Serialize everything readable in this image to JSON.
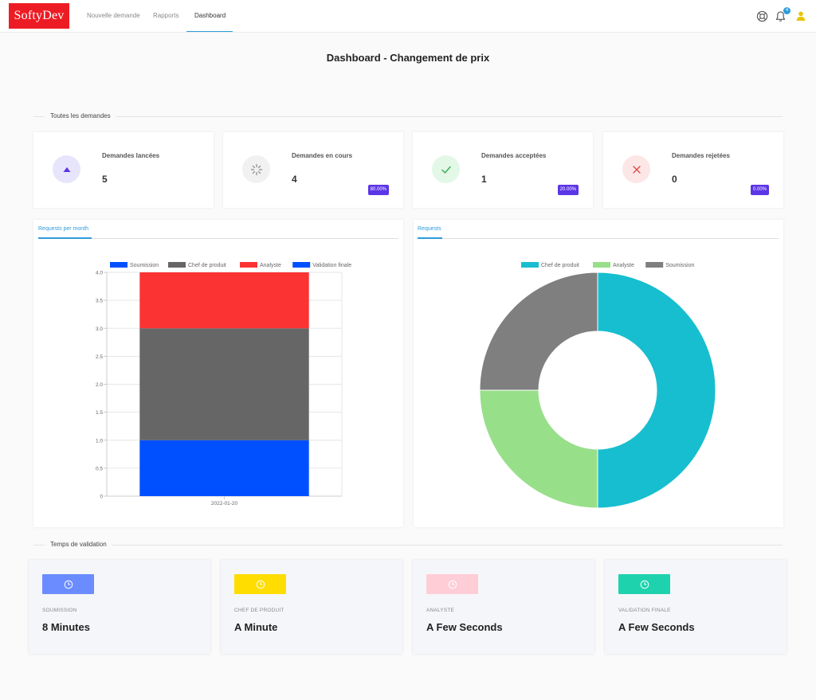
{
  "brand": {
    "logo": "SoftyDev",
    "color": "#ed1c24"
  },
  "nav": {
    "items": [
      {
        "label": "Nouvelle demande"
      },
      {
        "label": "Rapports"
      },
      {
        "label": "Dashboard",
        "active": true
      }
    ],
    "notification_count": "4",
    "icons": [
      "lifebuoy-icon",
      "bell-icon",
      "user-icon"
    ]
  },
  "page": {
    "title": "Dashboard - Changement de prix"
  },
  "sections": {
    "all_requests": "Toutes les demandes",
    "validation_time": "Temps de validation"
  },
  "stats": [
    {
      "title": "Demandes lancées",
      "value": "5",
      "percent": "",
      "icon": "triangle-up-icon",
      "icon_bg": "#e7e5fb",
      "icon_color": "#5b36e6"
    },
    {
      "title": "Demandes en cours",
      "value": "4",
      "percent": "80.00%",
      "icon": "spinner-icon",
      "icon_bg": "#f1f1f1",
      "icon_color": "#888888"
    },
    {
      "title": "Demandes acceptées",
      "value": "1",
      "percent": "20.00%",
      "icon": "check-icon",
      "icon_bg": "#e3f8e6",
      "icon_color": "#3caa50"
    },
    {
      "title": "Demandes rejetées",
      "value": "0",
      "percent": "0.00%",
      "icon": "close-icon",
      "icon_bg": "#fde6e6",
      "icon_color": "#e04545"
    }
  ],
  "charts": {
    "bar_tab": "Requests per month",
    "doughnut_tab": "Requests"
  },
  "chart_data": [
    {
      "type": "bar",
      "stacked": true,
      "categories": [
        "2022-01-20"
      ],
      "series": [
        {
          "name": "Soumission",
          "values": [
            1
          ],
          "color": "#0050ff"
        },
        {
          "name": "Chef de produit",
          "values": [
            2
          ],
          "color": "#666666"
        },
        {
          "name": "Analyste",
          "values": [
            1
          ],
          "color": "#fb3333"
        },
        {
          "name": "Validation finale",
          "values": [
            0
          ],
          "color": "#0050ff"
        }
      ],
      "ylim": [
        0,
        4.0
      ],
      "yticks": [
        "0",
        "0.5",
        "1.0",
        "1.5",
        "2.0",
        "2.5",
        "3.0",
        "3.5",
        "4.0"
      ],
      "legend": "top",
      "grid": true
    },
    {
      "type": "pie",
      "variant": "doughnut",
      "series": [
        {
          "name": "Chef de produit",
          "value": 2,
          "color": "#17becf"
        },
        {
          "name": "Analyste",
          "value": 1,
          "color": "#98df8a"
        },
        {
          "name": "Soumission",
          "value": 1,
          "color": "#7f7f7f"
        }
      ],
      "legend": "top"
    }
  ],
  "validation": [
    {
      "label": "Soumission",
      "value": "8 Minutes",
      "color": "#6b8cff",
      "icon": "clock-icon"
    },
    {
      "label": "Chef de produit",
      "value": "A Minute",
      "color": "#ffdd00",
      "icon": "clock-icon"
    },
    {
      "label": "Analyste",
      "value": "A Few Seconds",
      "color": "#ffcdd6",
      "icon": "clock-icon"
    },
    {
      "label": "Validation finale",
      "value": "A Few Seconds",
      "color": "#1ed2ad",
      "icon": "clock-icon"
    }
  ]
}
